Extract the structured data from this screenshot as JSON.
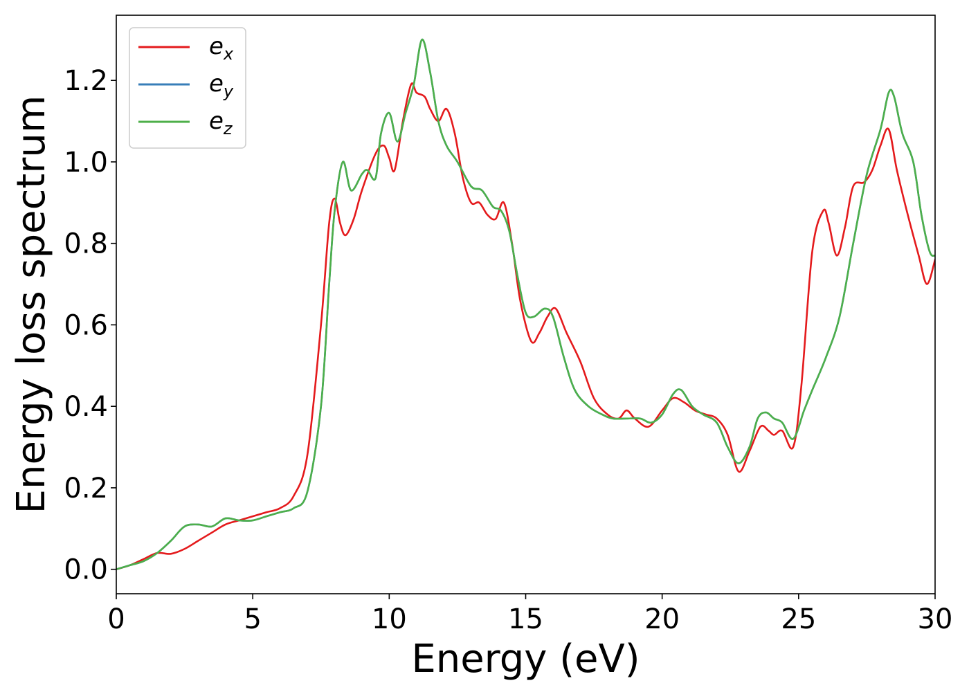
{
  "chart_data": {
    "type": "line",
    "title": "",
    "xlabel": "Energy (eV)",
    "ylabel": "Energy loss spectrum",
    "xlim": [
      0,
      30
    ],
    "ylim": [
      -0.06,
      1.36
    ],
    "xticks": [
      0,
      5,
      10,
      15,
      20,
      25,
      30
    ],
    "yticks": [
      0.0,
      0.2,
      0.4,
      0.6,
      0.8,
      1.0,
      1.2
    ],
    "ytick_labels": [
      "0.0",
      "0.2",
      "0.4",
      "0.6",
      "0.8",
      "1.0",
      "1.2"
    ],
    "grid": false,
    "legend_position": "top-left",
    "series": [
      {
        "name": "e_x",
        "legend_base": "e",
        "legend_sub": "x",
        "color": "#e41a1c",
        "points": [
          [
            0,
            0
          ],
          [
            0.5,
            0.01
          ],
          [
            1,
            0.025
          ],
          [
            1.5,
            0.04
          ],
          [
            2,
            0.038
          ],
          [
            2.5,
            0.05
          ],
          [
            3,
            0.07
          ],
          [
            3.5,
            0.09
          ],
          [
            4,
            0.11
          ],
          [
            4.5,
            0.12
          ],
          [
            5,
            0.13
          ],
          [
            5.5,
            0.14
          ],
          [
            6,
            0.15
          ],
          [
            6.5,
            0.18
          ],
          [
            7,
            0.28
          ],
          [
            7.5,
            0.6
          ],
          [
            7.8,
            0.85
          ],
          [
            8,
            0.91
          ],
          [
            8.2,
            0.85
          ],
          [
            8.4,
            0.82
          ],
          [
            8.7,
            0.86
          ],
          [
            9,
            0.93
          ],
          [
            9.5,
            1.02
          ],
          [
            9.8,
            1.04
          ],
          [
            10,
            1.01
          ],
          [
            10.2,
            0.98
          ],
          [
            10.5,
            1.1
          ],
          [
            10.8,
            1.19
          ],
          [
            11,
            1.17
          ],
          [
            11.3,
            1.16
          ],
          [
            11.5,
            1.13
          ],
          [
            11.8,
            1.1
          ],
          [
            12.1,
            1.13
          ],
          [
            12.4,
            1.07
          ],
          [
            12.7,
            0.96
          ],
          [
            13,
            0.9
          ],
          [
            13.3,
            0.9
          ],
          [
            13.6,
            0.87
          ],
          [
            13.9,
            0.86
          ],
          [
            14.2,
            0.9
          ],
          [
            14.5,
            0.8
          ],
          [
            14.8,
            0.66
          ],
          [
            15.2,
            0.56
          ],
          [
            15.5,
            0.58
          ],
          [
            15.8,
            0.62
          ],
          [
            16.1,
            0.64
          ],
          [
            16.5,
            0.58
          ],
          [
            17,
            0.51
          ],
          [
            17.5,
            0.42
          ],
          [
            18,
            0.38
          ],
          [
            18.4,
            0.37
          ],
          [
            18.7,
            0.39
          ],
          [
            19,
            0.37
          ],
          [
            19.5,
            0.35
          ],
          [
            20,
            0.39
          ],
          [
            20.4,
            0.42
          ],
          [
            20.8,
            0.41
          ],
          [
            21.2,
            0.39
          ],
          [
            21.6,
            0.38
          ],
          [
            22,
            0.37
          ],
          [
            22.4,
            0.33
          ],
          [
            22.8,
            0.24
          ],
          [
            23.2,
            0.29
          ],
          [
            23.6,
            0.35
          ],
          [
            23.9,
            0.34
          ],
          [
            24.1,
            0.33
          ],
          [
            24.4,
            0.34
          ],
          [
            24.8,
            0.3
          ],
          [
            25.1,
            0.45
          ],
          [
            25.5,
            0.78
          ],
          [
            25.9,
            0.88
          ],
          [
            26.1,
            0.85
          ],
          [
            26.4,
            0.77
          ],
          [
            26.7,
            0.84
          ],
          [
            27,
            0.94
          ],
          [
            27.4,
            0.95
          ],
          [
            27.7,
            0.98
          ],
          [
            28,
            1.04
          ],
          [
            28.3,
            1.08
          ],
          [
            28.6,
            0.98
          ],
          [
            29,
            0.87
          ],
          [
            29.4,
            0.77
          ],
          [
            29.7,
            0.7
          ],
          [
            30,
            0.76
          ]
        ]
      },
      {
        "name": "e_y",
        "legend_base": "e",
        "legend_sub": "y",
        "color": "#377eb8",
        "points": [
          [
            0,
            0
          ],
          [
            0.5,
            0.01
          ],
          [
            1,
            0.02
          ],
          [
            1.5,
            0.04
          ],
          [
            2,
            0.07
          ],
          [
            2.5,
            0.105
          ],
          [
            3,
            0.11
          ],
          [
            3.5,
            0.105
          ],
          [
            4,
            0.125
          ],
          [
            4.5,
            0.12
          ],
          [
            5,
            0.12
          ],
          [
            5.5,
            0.13
          ],
          [
            6,
            0.14
          ],
          [
            6.5,
            0.15
          ],
          [
            7,
            0.19
          ],
          [
            7.5,
            0.4
          ],
          [
            7.8,
            0.7
          ],
          [
            8,
            0.88
          ],
          [
            8.3,
            1.0
          ],
          [
            8.6,
            0.93
          ],
          [
            9,
            0.97
          ],
          [
            9.2,
            0.98
          ],
          [
            9.5,
            0.96
          ],
          [
            9.7,
            1.07
          ],
          [
            10,
            1.12
          ],
          [
            10.3,
            1.05
          ],
          [
            10.6,
            1.12
          ],
          [
            10.9,
            1.19
          ],
          [
            11.2,
            1.3
          ],
          [
            11.5,
            1.22
          ],
          [
            11.8,
            1.1
          ],
          [
            12.1,
            1.04
          ],
          [
            12.5,
            1.0
          ],
          [
            13,
            0.94
          ],
          [
            13.4,
            0.93
          ],
          [
            13.8,
            0.89
          ],
          [
            14.1,
            0.88
          ],
          [
            14.4,
            0.83
          ],
          [
            14.7,
            0.72
          ],
          [
            15,
            0.63
          ],
          [
            15.3,
            0.62
          ],
          [
            15.7,
            0.64
          ],
          [
            16,
            0.62
          ],
          [
            16.4,
            0.52
          ],
          [
            16.8,
            0.44
          ],
          [
            17.3,
            0.4
          ],
          [
            17.8,
            0.38
          ],
          [
            18.2,
            0.37
          ],
          [
            18.7,
            0.37
          ],
          [
            19.2,
            0.37
          ],
          [
            19.6,
            0.36
          ],
          [
            20,
            0.38
          ],
          [
            20.4,
            0.43
          ],
          [
            20.7,
            0.44
          ],
          [
            21.1,
            0.4
          ],
          [
            21.5,
            0.38
          ],
          [
            22,
            0.36
          ],
          [
            22.4,
            0.3
          ],
          [
            22.8,
            0.26
          ],
          [
            23.2,
            0.3
          ],
          [
            23.5,
            0.37
          ],
          [
            23.8,
            0.385
          ],
          [
            24.1,
            0.37
          ],
          [
            24.4,
            0.36
          ],
          [
            24.8,
            0.32
          ],
          [
            25.2,
            0.39
          ],
          [
            25.5,
            0.44
          ],
          [
            26,
            0.52
          ],
          [
            26.5,
            0.62
          ],
          [
            27,
            0.8
          ],
          [
            27.5,
            0.97
          ],
          [
            28,
            1.08
          ],
          [
            28.3,
            1.17
          ],
          [
            28.5,
            1.16
          ],
          [
            28.8,
            1.07
          ],
          [
            29.2,
            1.0
          ],
          [
            29.5,
            0.87
          ],
          [
            29.8,
            0.78
          ],
          [
            30,
            0.77
          ]
        ]
      },
      {
        "name": "e_z",
        "legend_base": "e",
        "legend_sub": "z",
        "color": "#4daf4a",
        "points": [
          [
            0,
            0
          ],
          [
            0.5,
            0.01
          ],
          [
            1,
            0.02
          ],
          [
            1.5,
            0.04
          ],
          [
            2,
            0.07
          ],
          [
            2.5,
            0.105
          ],
          [
            3,
            0.11
          ],
          [
            3.5,
            0.105
          ],
          [
            4,
            0.125
          ],
          [
            4.5,
            0.12
          ],
          [
            5,
            0.12
          ],
          [
            5.5,
            0.13
          ],
          [
            6,
            0.14
          ],
          [
            6.5,
            0.15
          ],
          [
            7,
            0.19
          ],
          [
            7.5,
            0.4
          ],
          [
            7.8,
            0.7
          ],
          [
            8,
            0.88
          ],
          [
            8.3,
            1.0
          ],
          [
            8.6,
            0.93
          ],
          [
            9,
            0.97
          ],
          [
            9.2,
            0.98
          ],
          [
            9.5,
            0.96
          ],
          [
            9.7,
            1.07
          ],
          [
            10,
            1.12
          ],
          [
            10.3,
            1.05
          ],
          [
            10.6,
            1.12
          ],
          [
            10.9,
            1.19
          ],
          [
            11.2,
            1.3
          ],
          [
            11.5,
            1.22
          ],
          [
            11.8,
            1.1
          ],
          [
            12.1,
            1.04
          ],
          [
            12.5,
            1.0
          ],
          [
            13,
            0.94
          ],
          [
            13.4,
            0.93
          ],
          [
            13.8,
            0.89
          ],
          [
            14.1,
            0.88
          ],
          [
            14.4,
            0.83
          ],
          [
            14.7,
            0.72
          ],
          [
            15,
            0.63
          ],
          [
            15.3,
            0.62
          ],
          [
            15.7,
            0.64
          ],
          [
            16,
            0.62
          ],
          [
            16.4,
            0.52
          ],
          [
            16.8,
            0.44
          ],
          [
            17.3,
            0.4
          ],
          [
            17.8,
            0.38
          ],
          [
            18.2,
            0.37
          ],
          [
            18.7,
            0.37
          ],
          [
            19.2,
            0.37
          ],
          [
            19.6,
            0.36
          ],
          [
            20,
            0.38
          ],
          [
            20.4,
            0.43
          ],
          [
            20.7,
            0.44
          ],
          [
            21.1,
            0.4
          ],
          [
            21.5,
            0.38
          ],
          [
            22,
            0.36
          ],
          [
            22.4,
            0.3
          ],
          [
            22.8,
            0.26
          ],
          [
            23.2,
            0.3
          ],
          [
            23.5,
            0.37
          ],
          [
            23.8,
            0.385
          ],
          [
            24.1,
            0.37
          ],
          [
            24.4,
            0.36
          ],
          [
            24.8,
            0.32
          ],
          [
            25.2,
            0.39
          ],
          [
            25.5,
            0.44
          ],
          [
            26,
            0.52
          ],
          [
            26.5,
            0.62
          ],
          [
            27,
            0.8
          ],
          [
            27.5,
            0.97
          ],
          [
            28,
            1.08
          ],
          [
            28.3,
            1.17
          ],
          [
            28.5,
            1.16
          ],
          [
            28.8,
            1.07
          ],
          [
            29.2,
            1.0
          ],
          [
            29.5,
            0.87
          ],
          [
            29.8,
            0.78
          ],
          [
            30,
            0.77
          ]
        ]
      }
    ]
  }
}
